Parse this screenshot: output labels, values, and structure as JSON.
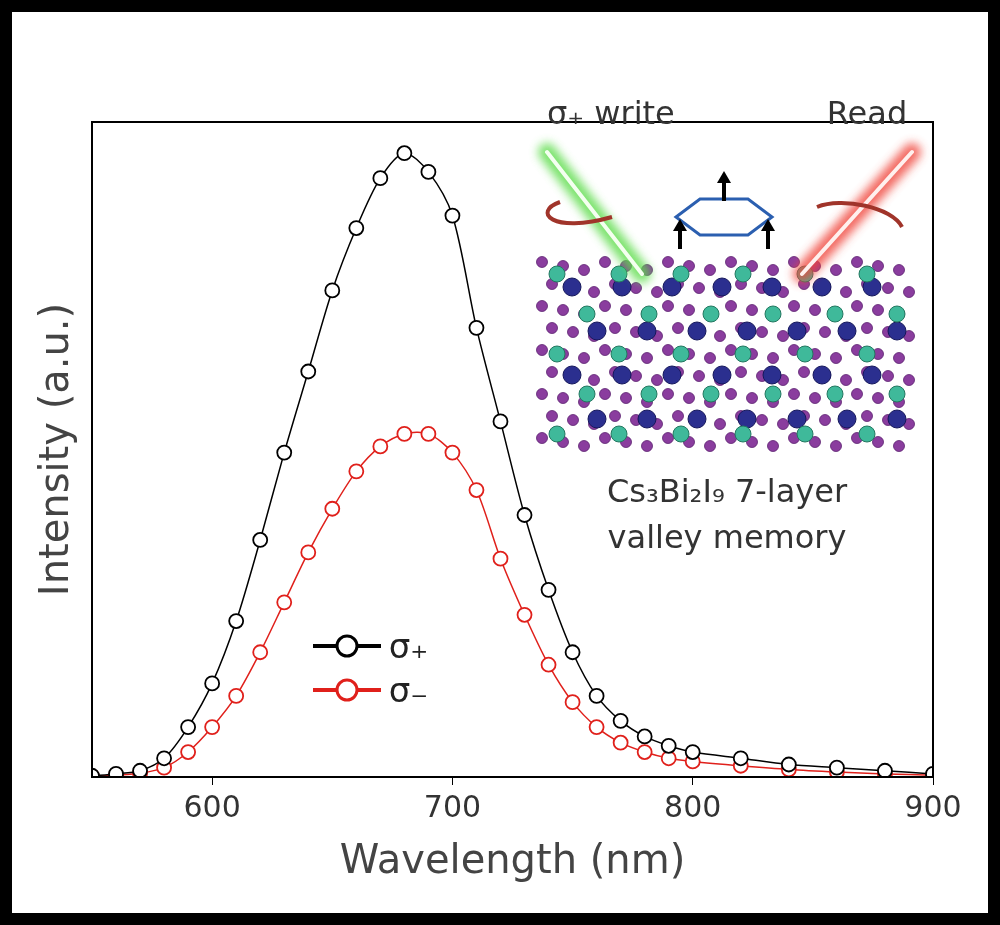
{
  "chart_data": {
    "type": "line",
    "x_label": "Wavelength (nm)",
    "y_label": "Intensity (a.u.)",
    "x": [
      550,
      560,
      570,
      580,
      590,
      600,
      610,
      620,
      630,
      640,
      650,
      660,
      670,
      680,
      690,
      700,
      710,
      720,
      730,
      740,
      750,
      760,
      770,
      780,
      790,
      800,
      820,
      840,
      860,
      880,
      900
    ],
    "series": [
      {
        "name": "σ₊",
        "color": "#000000",
        "marker": "circle",
        "line_style": "solid",
        "values": [
          0.002,
          0.005,
          0.01,
          0.03,
          0.08,
          0.15,
          0.25,
          0.38,
          0.52,
          0.65,
          0.78,
          0.88,
          0.96,
          1.0,
          0.97,
          0.9,
          0.72,
          0.57,
          0.42,
          0.3,
          0.2,
          0.13,
          0.09,
          0.065,
          0.05,
          0.04,
          0.03,
          0.02,
          0.015,
          0.01,
          0.005
        ]
      },
      {
        "name": "σ₋",
        "color": "#e0201b",
        "marker": "circle",
        "line_style": "solid",
        "values": [
          0.001,
          0.003,
          0.006,
          0.015,
          0.04,
          0.08,
          0.13,
          0.2,
          0.28,
          0.36,
          0.43,
          0.49,
          0.53,
          0.55,
          0.55,
          0.52,
          0.46,
          0.35,
          0.26,
          0.18,
          0.12,
          0.08,
          0.055,
          0.04,
          0.03,
          0.025,
          0.018,
          0.012,
          0.008,
          0.005,
          0.003
        ]
      }
    ],
    "xlim": [
      550,
      900
    ],
    "xticks": [
      600,
      700,
      800,
      900
    ],
    "ylim": [
      0,
      1.05
    ],
    "tick_labels": "x",
    "grid": false,
    "legend": "lower left",
    "annotations": [
      "σ₊ write",
      "Read",
      "Cs₃Bi₂I₉ 7-layer",
      "valley memory"
    ]
  }
}
